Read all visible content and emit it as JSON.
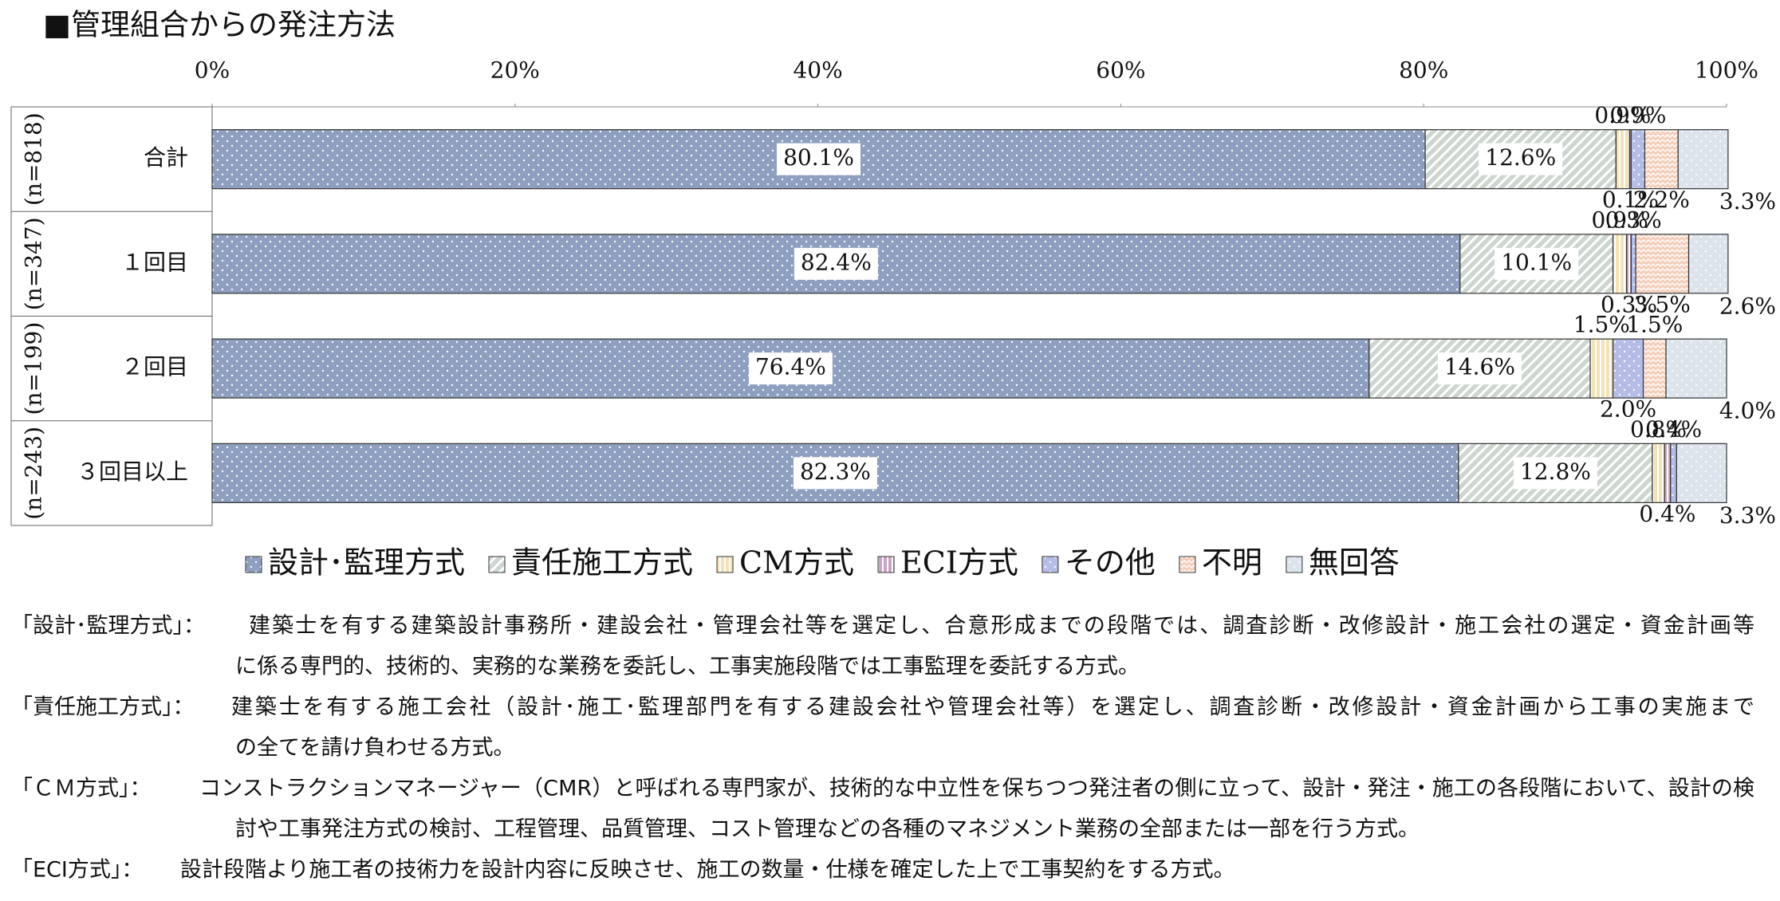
{
  "chart_data": {
    "type": "stacked-bar-horizontal",
    "title": "■管理組合からの発注方法",
    "categories": [
      "合計",
      "１回目",
      "２回目",
      "３回目以上"
    ],
    "group_labels": [
      "(n=818)",
      "(n=347)",
      "(n=199)",
      "(n=243)"
    ],
    "xlim": [
      0,
      100
    ],
    "xticks": [
      {
        "value": 0,
        "label": "0%"
      },
      {
        "value": 20,
        "label": "20%"
      },
      {
        "value": 40,
        "label": "40%"
      },
      {
        "value": 60,
        "label": "60%"
      },
      {
        "value": 80,
        "label": "80%"
      },
      {
        "value": 100,
        "label": "100%"
      }
    ],
    "series": [
      {
        "name": "設計･監理方式",
        "color": "#8e9fbf",
        "pattern": "dots",
        "values": [
          80.1,
          82.4,
          76.4,
          82.3
        ],
        "value_labels": [
          "80.1%",
          "82.4%",
          "76.4%",
          "82.3%"
        ]
      },
      {
        "name": "責任施工方式",
        "color": "#cdd6cf",
        "pattern": "hatch",
        "values": [
          12.6,
          10.1,
          14.6,
          12.8
        ],
        "value_labels": [
          "12.6%",
          "10.1%",
          "14.6%",
          "12.8%"
        ]
      },
      {
        "name": "CM方式",
        "color": "#f2e2b6",
        "pattern": "vlines",
        "values": [
          0.9,
          0.9,
          1.5,
          0.8
        ],
        "value_labels": [
          "0.9%",
          "0.9%",
          "1.5%",
          "0.8%"
        ]
      },
      {
        "name": "ECI方式",
        "color": "#c9a3c4",
        "pattern": "vlines",
        "values": [
          0.1,
          0.3,
          0,
          0.4
        ],
        "value_labels": [
          "0.1%",
          "0.3%",
          null,
          "0.4%"
        ]
      },
      {
        "name": "その他",
        "color": "#b5bde6",
        "pattern": "dots",
        "values": [
          0.9,
          0.3,
          2.0,
          0.4
        ],
        "value_labels": [
          "0.9%",
          "0.3%",
          "2.0%",
          "0.4%"
        ]
      },
      {
        "name": "不明",
        "color": "#f4cdb8",
        "pattern": "zigzag",
        "values": [
          2.2,
          3.5,
          1.5,
          0
        ],
        "value_labels": [
          "2.2%",
          "3.5%",
          "1.5%",
          null
        ]
      },
      {
        "name": "無回答",
        "color": "#dde4ec",
        "pattern": "dots",
        "values": [
          3.3,
          2.6,
          4.0,
          3.3
        ],
        "value_labels": [
          "3.3%",
          "2.6%",
          "4.0%",
          "3.3%"
        ]
      }
    ]
  },
  "notes": [
    {
      "term": "「設計･監理方式」：",
      "lines": [
        "建築士を有する建築設計事務所・建設会社・管理会社等を選定し、合意形成までの段階では、調査診断・改修設計・施工会社の選定・資金計画等",
        "に係る専門的、技術的、実務的な業務を委託し、工事実施段階では工事監理を委託する方式。"
      ]
    },
    {
      "term": "「責任施工方式」：",
      "lines": [
        "建築士を有する施工会社（設計･施工･監理部門を有する建設会社や管理会社等）を選定し、調査診断・改修設計・資金計画から工事の実施まで",
        "の全てを請け負わせる方式。"
      ]
    },
    {
      "term": "「ＣＭ方式」：",
      "lines": [
        "コンストラクションマネージャー（CMR）と呼ばれる専門家が、技術的な中立性を保ちつつ発注者の側に立って、設計・発注・施工の各段階において、設計の検",
        "討や工事発注方式の検討、工程管理、品質管理、コスト管理などの各種のマネジメント業務の全部または一部を行う方式。"
      ]
    },
    {
      "term": "「ECI方式」：",
      "lines": [
        "設計段階より施工者の技術力を設計内容に反映させ、施工の数量・仕様を確定した上で工事契約をする方式。"
      ]
    }
  ]
}
